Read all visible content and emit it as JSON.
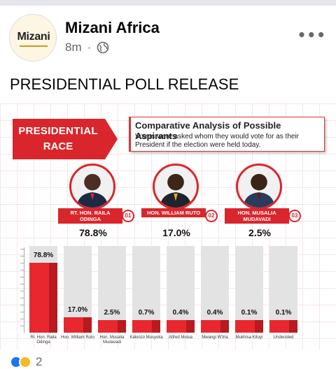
{
  "post": {
    "page_name": "Mizani Africa",
    "avatar_logo": "Mizani",
    "time": "8m",
    "text": "PRESIDENTIAL POLL RELEASE",
    "reaction_count": "2"
  },
  "graphic": {
    "badge_title": "PRESIDENTIAL",
    "badge_sub": "RACE",
    "desc_title": "Comparative Analysis of Possible Aspirants",
    "desc_text": "Voters were asked whom they would vote for as their President if the election were held today.",
    "candidates": [
      {
        "label": "RT. HON. RAILA ODINGA",
        "num": "01",
        "pct": "78.8%"
      },
      {
        "label": "HON. WILLIAM RUTO",
        "num": "02",
        "pct": "17.0%"
      },
      {
        "label": "HON. MUSALIA MUDAVADI",
        "num": "03",
        "pct": "2.5%"
      }
    ]
  },
  "chart_data": {
    "type": "bar",
    "categories": [
      "Rt. Hon. Raila Odinga",
      "Hon. William Ruto",
      "Hon. Musalia Mudavadi",
      "Kalonzo Musyoka",
      "Alfred Mutua",
      "Mwangi W'tria",
      "Mukhisa Kituyi",
      "Undecided"
    ],
    "values": [
      78.8,
      17.0,
      2.5,
      0.7,
      0.4,
      0.4,
      0.1,
      0.1
    ],
    "value_labels": [
      "78.8%",
      "17.0%",
      "2.5%",
      "0.7%",
      "0.4%",
      "0.4%",
      "0.1%",
      "0.1%"
    ],
    "title": "",
    "xlabel": "",
    "ylabel": "",
    "colors": {
      "bar": "#e8282e",
      "background": "#e3e3e3"
    }
  }
}
